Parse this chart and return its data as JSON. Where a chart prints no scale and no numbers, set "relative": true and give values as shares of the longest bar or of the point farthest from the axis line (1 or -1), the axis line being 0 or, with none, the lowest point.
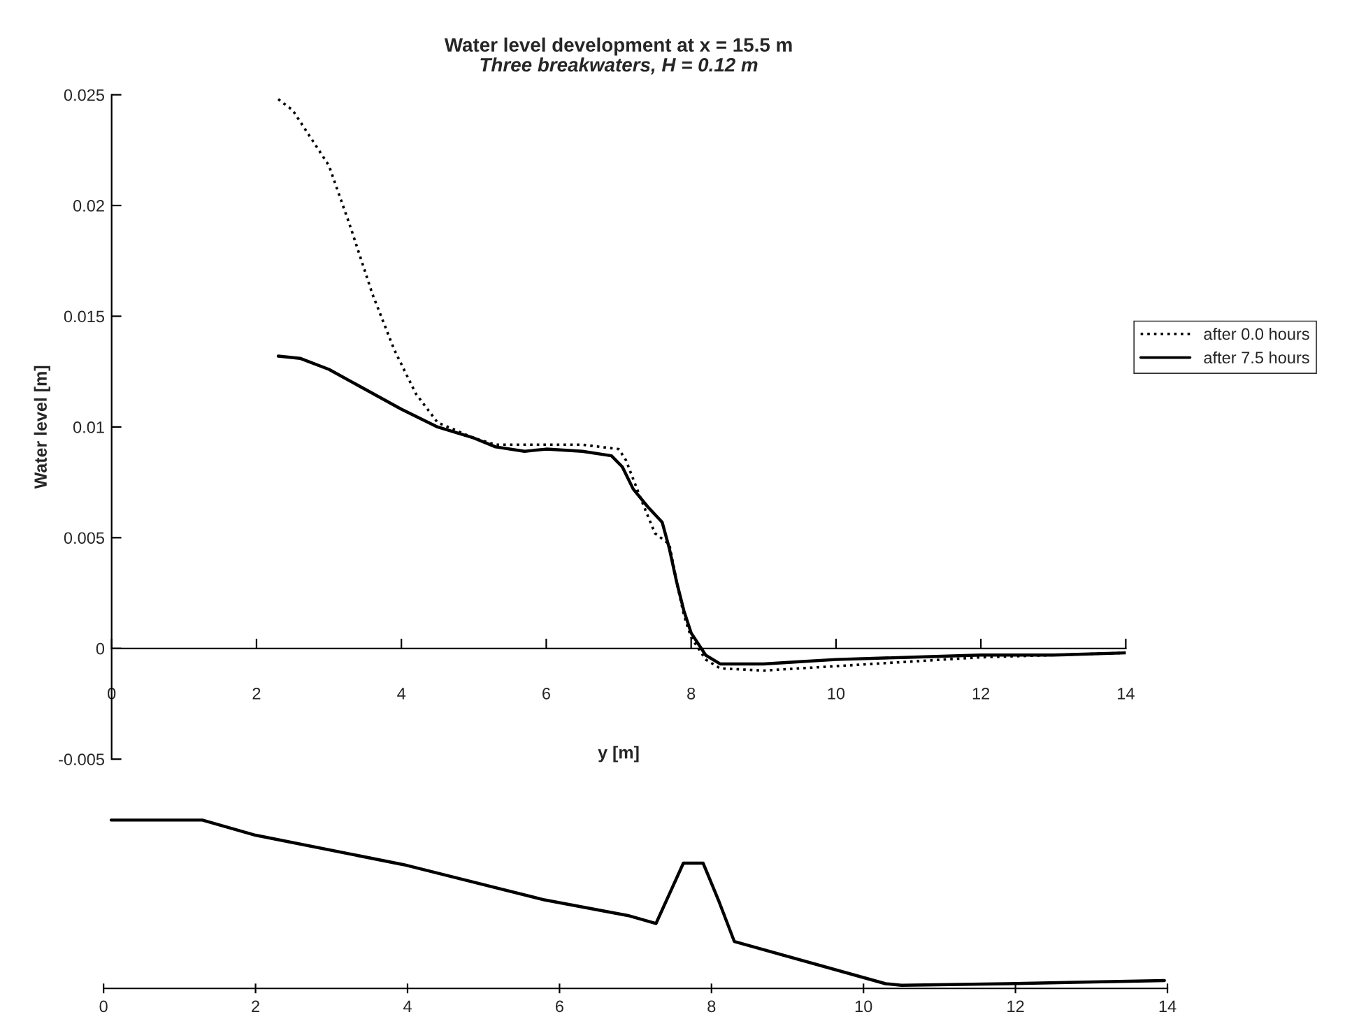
{
  "chart_data": [
    {
      "type": "line",
      "title": "Water level development at x = 15.5 m",
      "subtitle": "Three breakwaters, H = 0.12 m",
      "xlabel": "y [m]",
      "ylabel": "Water level [m]",
      "legend": "right",
      "xlim": [
        0,
        14
      ],
      "xticks": [
        0,
        2,
        4,
        6,
        8,
        10,
        12,
        14
      ],
      "ylim": [
        -0.005,
        0.025
      ],
      "yticks": [
        -0.005,
        0,
        0.005,
        0.01,
        0.015,
        0.02,
        0.025
      ],
      "grid": false,
      "series": [
        {
          "name": "after 0.0 hours",
          "color": "#000000",
          "line_style": "dotted",
          "x": [
            2.3,
            2.5,
            2.7,
            3.0,
            3.3,
            3.6,
            3.9,
            4.2,
            4.5,
            5.0,
            5.3,
            6.0,
            6.5,
            7.0,
            7.1,
            7.3,
            7.5,
            7.7,
            7.8,
            7.9,
            8.0,
            8.2,
            8.4,
            9.0,
            9.5,
            10.0,
            11.0,
            12.0,
            13.0,
            14.0
          ],
          "values": [
            0.0248,
            0.0243,
            0.0233,
            0.0218,
            0.019,
            0.016,
            0.0135,
            0.0115,
            0.0102,
            0.0095,
            0.0092,
            0.0092,
            0.0092,
            0.009,
            0.0085,
            0.0068,
            0.0052,
            0.0047,
            0.003,
            0.0015,
            0.0005,
            -0.0005,
            -0.0009,
            -0.001,
            -0.0009,
            -0.0008,
            -0.0006,
            -0.0004,
            -0.0003,
            -0.0002
          ]
        },
        {
          "name": "after 7.5 hours",
          "color": "#000000",
          "line_style": "solid",
          "x": [
            2.3,
            2.6,
            3.0,
            3.5,
            4.0,
            4.5,
            5.0,
            5.3,
            5.7,
            6.0,
            6.5,
            6.9,
            7.05,
            7.2,
            7.4,
            7.6,
            7.7,
            7.8,
            7.9,
            8.0,
            8.2,
            8.4,
            9.0,
            9.5,
            10.0,
            11.0,
            12.0,
            13.0,
            14.0
          ],
          "values": [
            0.0132,
            0.0131,
            0.0126,
            0.0117,
            0.0108,
            0.01,
            0.0095,
            0.0091,
            0.0089,
            0.009,
            0.0089,
            0.0087,
            0.0082,
            0.0072,
            0.0064,
            0.0057,
            0.0045,
            0.003,
            0.0017,
            0.0007,
            -0.0003,
            -0.0007,
            -0.0007,
            -0.0006,
            -0.0005,
            -0.0004,
            -0.0003,
            -0.0003,
            -0.0002
          ]
        }
      ]
    },
    {
      "type": "line",
      "relative": true,
      "tick_labels": "x",
      "xlim": [
        0,
        14
      ],
      "xticks": [
        0,
        2,
        4,
        6,
        8,
        10,
        12,
        14
      ],
      "series": [
        {
          "color": "#000000",
          "line_style": "solid",
          "x": [
            0.1,
            1.3,
            2.0,
            3.95,
            5.8,
            6.9,
            7.27,
            7.63,
            7.89,
            8.09,
            8.3,
            10.29,
            10.5,
            11.9,
            13.96
          ],
          "values": [
            1.0,
            1.0,
            0.91,
            0.735,
            0.526,
            0.433,
            0.386,
            0.744,
            0.744,
            0.526,
            0.279,
            0.028,
            0.019,
            0.028,
            0.047
          ]
        }
      ]
    }
  ]
}
